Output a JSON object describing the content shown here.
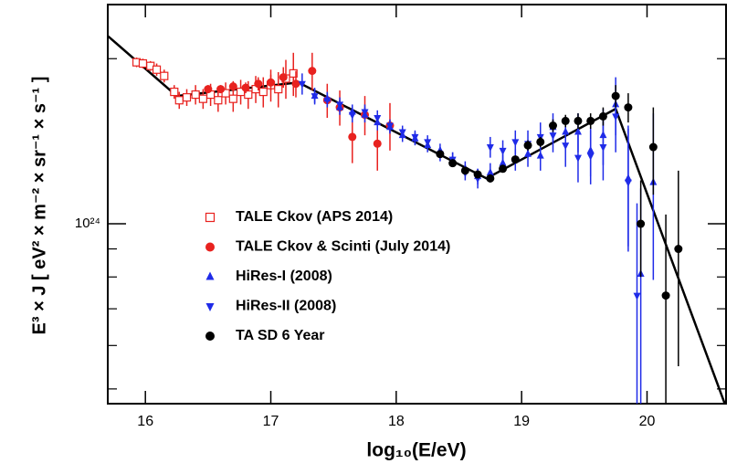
{
  "chart_data": {
    "type": "scatter",
    "xlabel": "log₁₀(E/eV)",
    "ylabel": "E³ × J  [ eV² × m⁻² × sr⁻¹ × s⁻¹ ]",
    "xlim": [
      15.7,
      20.63
    ],
    "xticks": [
      16,
      17,
      18,
      19,
      20
    ],
    "ylim": [
      4.7e+23,
      2.51e+24
    ],
    "log_y": true,
    "yticks": [
      {
        "value": 1e+24,
        "label": "10²⁴"
      }
    ],
    "yminorticks": [
      5e+23,
      6e+23,
      7e+23,
      8e+23,
      9e+23,
      2e+24
    ],
    "legend_position": "center-left",
    "series": [
      {
        "name": "TALE Ckov (APS 2014)",
        "color": "#e8221f",
        "marker": "open-square",
        "x": [
          15.93,
          15.98,
          16.04,
          16.09,
          16.15,
          16.23,
          16.27,
          16.33,
          16.4,
          16.46,
          16.52,
          16.58,
          16.64,
          16.7,
          16.76,
          16.82,
          16.88,
          16.94,
          17.0,
          17.06,
          17.12,
          17.18
        ],
        "values": [
          1.97e+24,
          1.96e+24,
          1.94e+24,
          1.91e+24,
          1.86e+24,
          1.74e+24,
          1.68e+24,
          1.7e+24,
          1.72e+24,
          1.69e+24,
          1.72e+24,
          1.68e+24,
          1.73e+24,
          1.69e+24,
          1.74e+24,
          1.72e+24,
          1.76e+24,
          1.74e+24,
          1.79e+24,
          1.76e+24,
          1.84e+24,
          1.88e+24
        ],
        "errors": [
          4e+22,
          4e+22,
          4e+22,
          5e+22,
          5e+22,
          5e+22,
          6e+22,
          6e+22,
          7e+22,
          7e+22,
          8e+22,
          8e+22,
          8e+22,
          9e+22,
          9e+22,
          1e+23,
          1e+23,
          1.1e+23,
          1.2e+23,
          1.3e+23,
          1.5e+23,
          1.7e+23
        ]
      },
      {
        "name": "TALE Ckov & Scinti (July 2014)",
        "color": "#e8221f",
        "marker": "circle",
        "x": [
          16.5,
          16.6,
          16.7,
          16.8,
          16.9,
          17.0,
          17.1,
          17.2,
          17.33,
          17.45,
          17.55,
          17.65,
          17.75,
          17.85,
          17.95
        ],
        "values": [
          1.76e+24,
          1.76e+24,
          1.78e+24,
          1.77e+24,
          1.8e+24,
          1.81e+24,
          1.85e+24,
          1.8e+24,
          1.9e+24,
          1.68e+24,
          1.63e+24,
          1.44e+24,
          1.58e+24,
          1.4e+24,
          1.51e+24
        ],
        "errors": [
          3e+22,
          3e+22,
          4e+22,
          4e+22,
          5e+22,
          6e+22,
          8e+22,
          1e+23,
          1.5e+23,
          1.2e+23,
          1.2e+23,
          1.5e+23,
          1.3e+23,
          1.5e+23,
          1.5e+23
        ]
      },
      {
        "name": "HiRes-I (2008)",
        "color": "#1f2be8",
        "marker": "triangle-up",
        "x": [
          17.35,
          17.45,
          17.55,
          17.65,
          17.75,
          17.85,
          17.95,
          18.05,
          18.15,
          18.25,
          18.35,
          18.45,
          18.55,
          18.65,
          18.75,
          18.85,
          18.95,
          19.05,
          19.15,
          19.25,
          19.35,
          19.45,
          19.55,
          19.65,
          19.75,
          19.85,
          19.95,
          20.05
        ],
        "values": [
          1.71e+24,
          1.69e+24,
          1.63e+24,
          1.6e+24,
          1.58e+24,
          1.53e+24,
          1.5e+24,
          1.45e+24,
          1.43e+24,
          1.39e+24,
          1.36e+24,
          1.31e+24,
          1.26e+24,
          1.22e+24,
          1.24e+24,
          1.29e+24,
          1.31e+24,
          1.34e+24,
          1.33e+24,
          1.5e+24,
          1.47e+24,
          1.47e+24,
          1.36e+24,
          1.45e+24,
          1.65e+24,
          1.21e+24,
          8.1e+23,
          1.19e+24
        ],
        "errors": [
          5e+22,
          5e+22,
          5e+22,
          5e+22,
          5e+22,
          5e+22,
          4e+22,
          4e+22,
          4e+22,
          4e+22,
          4e+22,
          4e+22,
          4e+22,
          4e+22,
          5e+22,
          5e+22,
          6e+22,
          7e+22,
          8e+22,
          9e+22,
          1e+23,
          1.2e+23,
          1.4e+23,
          1.7e+23,
          2e+23,
          3e+23,
          3.5e+23,
          4e+23
        ]
      },
      {
        "name": "HiRes-II (2008)",
        "color": "#1f2be8",
        "marker": "triangle-down",
        "x": [
          17.25,
          17.35,
          17.45,
          17.55,
          17.65,
          17.75,
          17.85,
          17.95,
          18.05,
          18.15,
          18.25,
          18.35,
          18.45,
          18.55,
          18.65,
          18.75,
          18.85,
          18.95,
          19.05,
          19.15,
          19.25,
          19.35,
          19.45,
          19.55,
          19.65,
          19.75,
          19.85,
          19.92
        ],
        "values": [
          1.8e+24,
          1.71e+24,
          1.68e+24,
          1.65e+24,
          1.58e+24,
          1.6e+24,
          1.56e+24,
          1.51e+24,
          1.47e+24,
          1.44e+24,
          1.41e+24,
          1.34e+24,
          1.31e+24,
          1.24e+24,
          1.21e+24,
          1.38e+24,
          1.36e+24,
          1.41e+24,
          1.4e+24,
          1.44e+24,
          1.45e+24,
          1.39e+24,
          1.32e+24,
          1.33e+24,
          1.38e+24,
          1.57e+24,
          1.19e+24,
          7.4e+23
        ],
        "errors": [
          8e+22,
          6e+22,
          5e+22,
          5e+22,
          5e+22,
          5e+22,
          5e+22,
          4e+22,
          4e+22,
          4e+22,
          4e+22,
          4e+22,
          4e+22,
          4e+22,
          5e+22,
          6e+22,
          6e+22,
          7e+22,
          8e+22,
          9e+22,
          1e+23,
          1.2e+23,
          1.3e+23,
          1.5e+23,
          1.8e+23,
          2.2e+23,
          3e+23,
          3.5e+23
        ]
      },
      {
        "name": "TA SD 6 Year",
        "color": "#000000",
        "marker": "circle",
        "x": [
          18.35,
          18.45,
          18.55,
          18.65,
          18.75,
          18.85,
          18.95,
          19.05,
          19.15,
          19.25,
          19.35,
          19.45,
          19.55,
          19.65,
          19.75,
          19.85,
          19.95,
          20.05,
          20.15,
          20.25
        ],
        "values": [
          1.34e+24,
          1.29e+24,
          1.25e+24,
          1.23e+24,
          1.21e+24,
          1.26e+24,
          1.31e+24,
          1.39e+24,
          1.41e+24,
          1.51e+24,
          1.54e+24,
          1.54e+24,
          1.54e+24,
          1.57e+24,
          1.71e+24,
          1.63e+24,
          1e+24,
          1.38e+24,
          7.4e+23,
          9e+23
        ],
        "errors": [
          2e+22,
          2e+22,
          2e+22,
          2e+22,
          2e+22,
          2e+22,
          2e+22,
          3e+22,
          3e+22,
          4e+22,
          4e+22,
          5e+22,
          5e+22,
          6e+22,
          8e+22,
          1e+23,
          2e+23,
          2.5e+23,
          3e+23,
          3.5e+23
        ]
      }
    ],
    "fit": {
      "color": "#000000",
      "x": [
        15.7,
        16.25,
        17.22,
        18.72,
        19.75,
        20.62
      ],
      "values": [
        2.2e+24,
        1.71e+24,
        1.81e+24,
        1.21e+24,
        1.62e+24,
        4.7e+23
      ]
    }
  }
}
